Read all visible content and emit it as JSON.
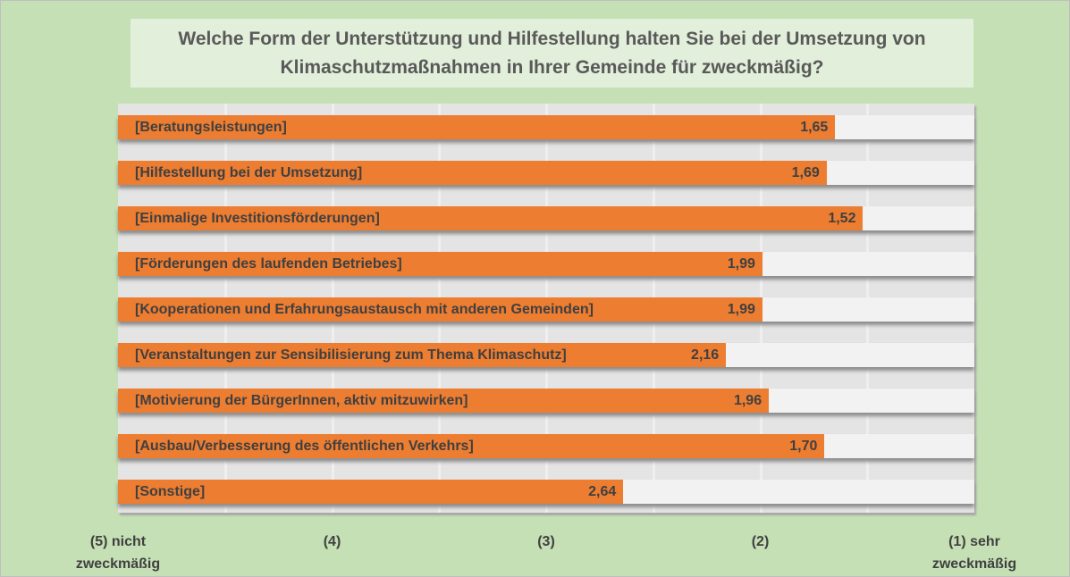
{
  "chart_data": {
    "type": "bar",
    "orientation": "horizontal",
    "title": "Welche Form der Unterstützung und Hilfestellung halten Sie bei der Umsetzung von Klimaschutzmaßnahmen in Ihrer Gemeinde für zweckmäßig?",
    "categories": [
      "[Beratungsleistungen]",
      "[Hilfestellung bei der Umsetzung]",
      "[Einmalige Investitionsförderungen]",
      "[Förderungen des laufenden Betriebes]",
      "[Kooperationen und Erfahrungsaustausch mit anderen Gemeinden]",
      "[Veranstaltungen zur Sensibilisierung zum Thema Klimaschutz]",
      "[Motivierung der BürgerInnen, aktiv mitzuwirken]",
      "[Ausbau/Verbesserung des öffentlichen Verkehrs]",
      "[Sonstige]"
    ],
    "values": [
      1.65,
      1.69,
      1.52,
      1.99,
      1.99,
      2.16,
      1.96,
      1.7,
      2.64
    ],
    "value_labels": [
      "1,65",
      "1,69",
      "1,52",
      "1,99",
      "1,99",
      "2,16",
      "1,96",
      "1,70",
      "2,64"
    ],
    "xlim": [
      5,
      1
    ],
    "x_reversed": true,
    "xticks": [
      5,
      4,
      3,
      2,
      1
    ],
    "xtick_labels": [
      "(5) nicht\nzweckmäßig",
      "(4)",
      "(3)",
      "(2)",
      "(1) sehr\nzweckmäßig"
    ],
    "grid": true,
    "colors": {
      "bar": "#ed7d31",
      "track": "#f2f2f2",
      "background": "#c5e0b4",
      "title_box": "#e2efda"
    }
  }
}
